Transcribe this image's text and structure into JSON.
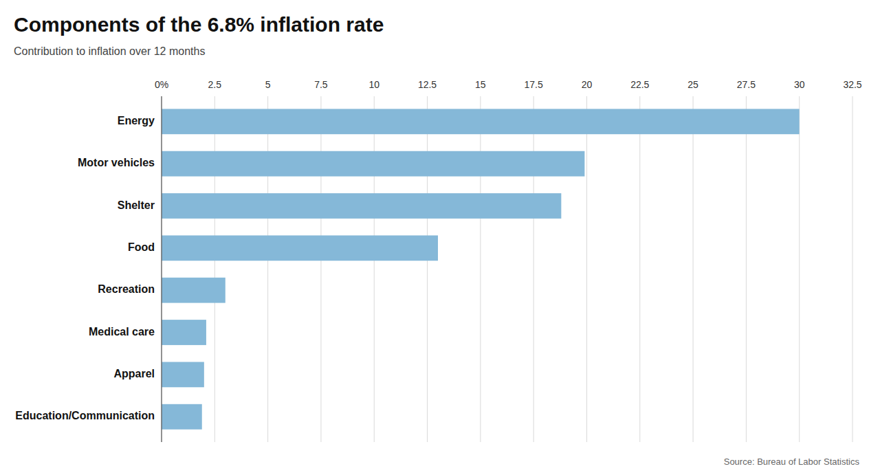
{
  "chart_data": {
    "type": "bar",
    "orientation": "horizontal",
    "title": "Components of the 6.8% inflation rate",
    "subtitle": "Contribution to inflation over 12 months",
    "source": "Source: Bureau of Labor Statistics",
    "categories": [
      "Energy",
      "Motor vehicles",
      "Shelter",
      "Food",
      "Recreation",
      "Medical care",
      "Apparel",
      "Education/Communication"
    ],
    "values": [
      30.0,
      19.9,
      18.8,
      13.0,
      3.0,
      2.1,
      2.0,
      1.9
    ],
    "color": "#85B8D8",
    "xlim": [
      0,
      32.5
    ],
    "xticks": [
      {
        "value": 0,
        "label": "0%"
      },
      2.5,
      5,
      7.5,
      10,
      12.5,
      15,
      17.5,
      20,
      22.5,
      25,
      27.5,
      30,
      32.5
    ],
    "grid": true
  }
}
